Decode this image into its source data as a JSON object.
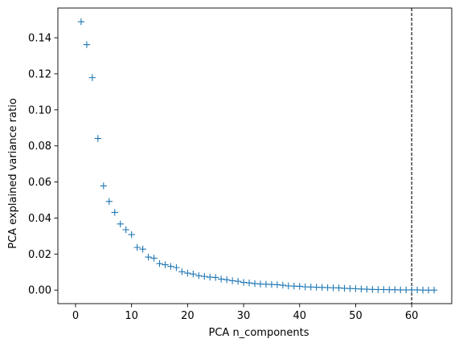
{
  "chart_data": {
    "type": "scatter",
    "marker": "plus",
    "title": "",
    "xlabel": "PCA n_components",
    "ylabel": "PCA explained variance ratio",
    "xlim": [
      -3.15,
      67.15
    ],
    "ylim": [
      -0.0075,
      0.1565
    ],
    "xticks": [
      0,
      10,
      20,
      30,
      40,
      50,
      60
    ],
    "yticks": [
      0.0,
      0.02,
      0.04,
      0.06,
      0.08,
      0.1,
      0.12,
      0.14
    ],
    "ytick_labels": [
      "0.00",
      "0.02",
      "0.04",
      "0.06",
      "0.08",
      "0.10",
      "0.12",
      "0.14"
    ],
    "grid": false,
    "series": [
      {
        "color": "#1f77b4",
        "x": [
          1,
          2,
          3,
          4,
          5,
          6,
          7,
          8,
          9,
          10,
          11,
          12,
          13,
          14,
          15,
          16,
          17,
          18,
          19,
          20,
          21,
          22,
          23,
          24,
          25,
          26,
          27,
          28,
          29,
          30,
          31,
          32,
          33,
          34,
          35,
          36,
          37,
          38,
          39,
          40,
          41,
          42,
          43,
          44,
          45,
          46,
          47,
          48,
          49,
          50,
          51,
          52,
          53,
          54,
          55,
          56,
          57,
          58,
          59,
          60,
          61,
          62,
          63,
          64
        ],
        "values": [
          0.1489,
          0.1362,
          0.1179,
          0.0841,
          0.0578,
          0.0492,
          0.0431,
          0.0367,
          0.0335,
          0.0308,
          0.0237,
          0.0227,
          0.0183,
          0.0177,
          0.0147,
          0.0141,
          0.0132,
          0.0125,
          0.0102,
          0.0094,
          0.0089,
          0.008,
          0.0076,
          0.0072,
          0.007,
          0.0061,
          0.0058,
          0.0052,
          0.0049,
          0.0043,
          0.004,
          0.0036,
          0.0034,
          0.0033,
          0.0031,
          0.003,
          0.0027,
          0.0023,
          0.0022,
          0.0021,
          0.0018,
          0.0017,
          0.0016,
          0.0015,
          0.0014,
          0.0013,
          0.0012,
          0.001,
          0.0009,
          0.0008,
          0.0006,
          0.0005,
          0.0004,
          0.0003,
          0.0003,
          0.0002,
          0.0002,
          0.0001,
          0.0001,
          0.0001,
          0.0001,
          0.0,
          0.0,
          0.0
        ]
      }
    ],
    "reference_line": {
      "orientation": "vertical",
      "x": 60,
      "style": "dashed",
      "color": "#000000"
    }
  }
}
